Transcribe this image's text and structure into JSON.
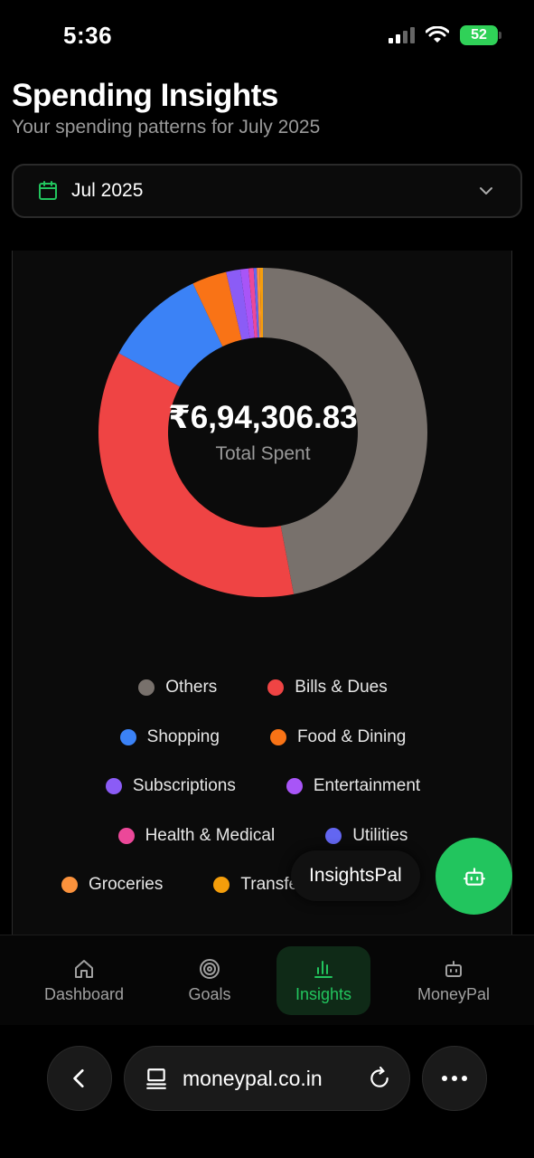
{
  "status_bar": {
    "time": "5:36",
    "battery": "52"
  },
  "header": {
    "title": "Spending Insights",
    "subtitle": "Your spending patterns for July 2025"
  },
  "month_selector": {
    "value": "Jul 2025",
    "icon": "calendar-icon",
    "chevron": "chevron-down-icon"
  },
  "summary": {
    "total": "₹6,94,306.83",
    "total_label": "Total Spent"
  },
  "chart_data": {
    "type": "pie",
    "donut": true,
    "series": [
      {
        "name": "Others",
        "value": 47.0,
        "color": "#78716c"
      },
      {
        "name": "Bills & Dues",
        "value": 36.0,
        "color": "#ef4444"
      },
      {
        "name": "Shopping",
        "value": 10.0,
        "color": "#3b82f6"
      },
      {
        "name": "Food & Dining",
        "value": 3.4,
        "color": "#f97316"
      },
      {
        "name": "Subscriptions",
        "value": 1.4,
        "color": "#8b5cf6"
      },
      {
        "name": "Entertainment",
        "value": 0.8,
        "color": "#a855f7"
      },
      {
        "name": "Health & Medical",
        "value": 0.5,
        "color": "#ec4899"
      },
      {
        "name": "Utilities",
        "value": 0.3,
        "color": "#6366f1"
      },
      {
        "name": "Groceries",
        "value": 0.3,
        "color": "#fb923c"
      },
      {
        "name": "Transfers",
        "value": 0.3,
        "color": "#f59e0b"
      }
    ]
  },
  "legend": {
    "row1": [
      "Others",
      "Bills & Dues"
    ],
    "row2": [
      "Shopping",
      "Food & Dining"
    ],
    "row3": [
      "Subscriptions",
      "Entertainment"
    ],
    "row4": [
      "Health & Medical",
      "Utilities"
    ],
    "row5": [
      "Groceries",
      "Transfe"
    ]
  },
  "chat": {
    "label": "InsightsPal",
    "icon": "robot-icon"
  },
  "nav": {
    "dashboard": "Dashboard",
    "goals": "Goals",
    "insights": "Insights",
    "moneypal": "MoneyPal"
  },
  "browser": {
    "url": "moneypal.co.in"
  },
  "colors": {
    "accent": "#22c55e",
    "background": "#000000"
  }
}
